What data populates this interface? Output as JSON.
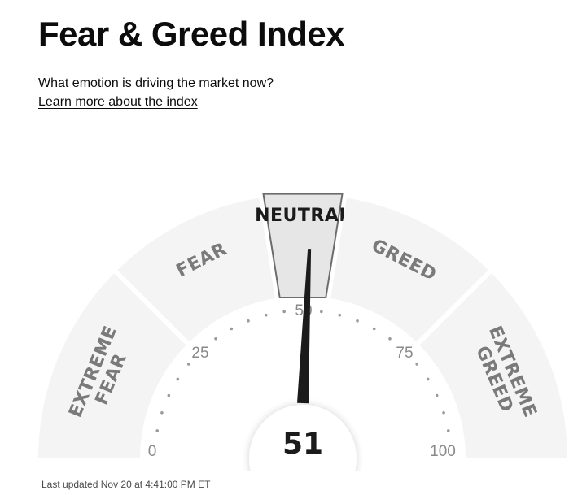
{
  "header": {
    "title": "Fear & Greed Index",
    "subtitle": "What emotion is driving the market now?",
    "learn_more_link": "Learn more about the index"
  },
  "gauge": {
    "value": 51,
    "score_text": "51",
    "scale": {
      "min": 0,
      "max": 100
    },
    "segments": [
      {
        "lines": [
          "EXTREME",
          "FEAR"
        ],
        "range": [
          0,
          25
        ],
        "active": false
      },
      {
        "lines": [
          "FEAR"
        ],
        "range": [
          25,
          45
        ],
        "active": false
      },
      {
        "lines": [
          "NEUTRAL"
        ],
        "range": [
          45,
          55
        ],
        "active": true
      },
      {
        "lines": [
          "GREED"
        ],
        "range": [
          55,
          75
        ],
        "active": false
      },
      {
        "lines": [
          "EXTREME",
          "GREED"
        ],
        "range": [
          75,
          100
        ],
        "active": false
      }
    ],
    "tick_labels": [
      "0",
      "25",
      "50",
      "75",
      "100"
    ],
    "colors": {
      "segment_fill": "#f4f4f4",
      "active_segment_fill": "#e6e6e6",
      "needle": "#1b1b1b",
      "dots": "#9a9a9a"
    }
  },
  "footer": {
    "last_updated": "Last updated Nov 20 at 4:41:00 PM ET"
  }
}
